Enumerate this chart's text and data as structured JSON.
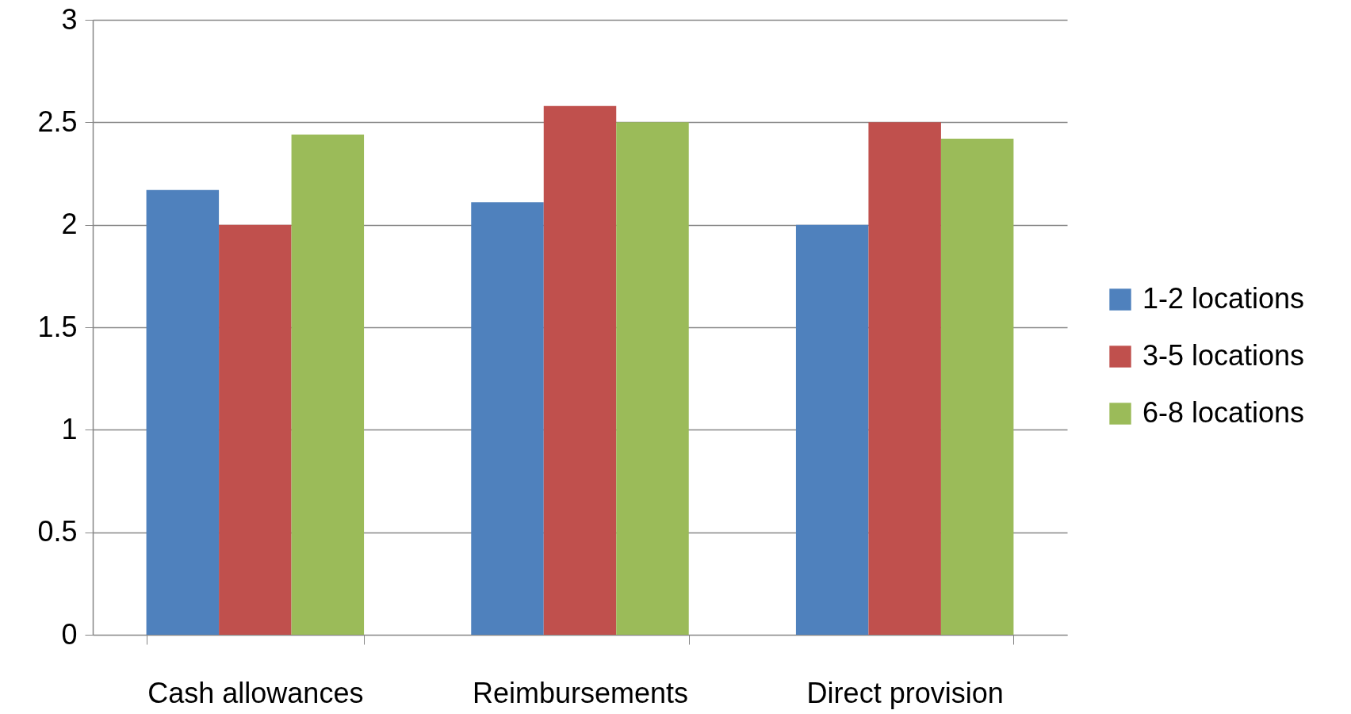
{
  "chart_data": {
    "type": "bar",
    "categories": [
      "Cash allowances",
      "Reimbursements",
      "Direct provision"
    ],
    "series": [
      {
        "name": "1-2 locations",
        "color": "#4f81bd",
        "values": [
          2.17,
          2.11,
          2.0
        ]
      },
      {
        "name": "3-5 locations",
        "color": "#c0504d",
        "values": [
          2.0,
          2.58,
          2.5
        ]
      },
      {
        "name": "6-8 locations",
        "color": "#9bbb59",
        "values": [
          2.44,
          2.5,
          2.42
        ]
      }
    ],
    "ylim": [
      0,
      3
    ],
    "yticks": [
      0,
      0.5,
      1,
      1.5,
      2,
      2.5,
      3
    ],
    "grid": "y",
    "legend": "right"
  }
}
